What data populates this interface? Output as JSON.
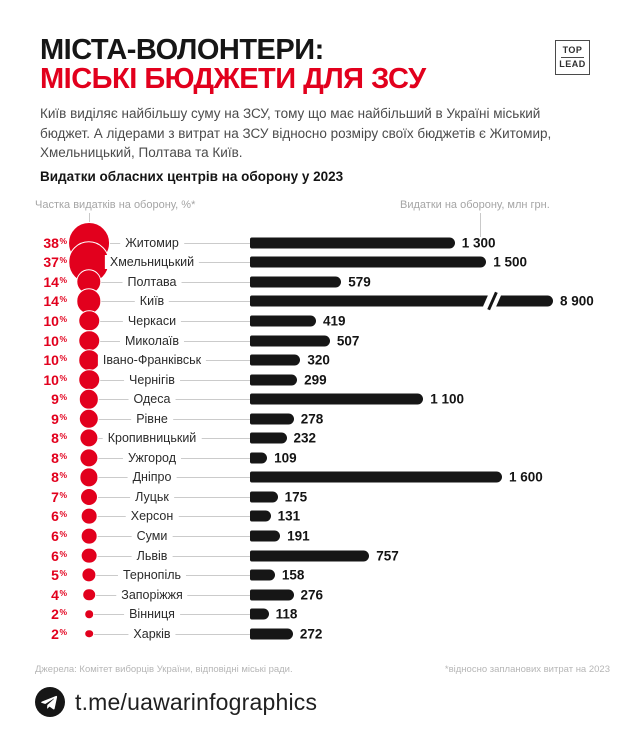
{
  "colors": {
    "accent_red": "#e2001d",
    "bar_black": "#161616",
    "connector_gray": "#cbcbcb",
    "muted_gray": "#a5a5a5"
  },
  "strings": {
    "percent_sign": "%"
  },
  "header": {
    "title_line1": "МІСТА-ВОЛОНТЕРИ:",
    "title_line2": "МІСЬКІ БЮДЖЕТИ ДЛЯ ЗСУ",
    "logo_top": "TOP",
    "logo_bottom": "LEAD",
    "intro": "Київ виділяє найбільшу суму на ЗСУ, тому що має найбільший в Україні міський бюджет. А лідерами з витрат на ЗСУ відносно розміру своїх бюджетів є Житомир, Хмельницький, Полтава та Київ."
  },
  "chart_data": {
    "type": "bar",
    "title": "Видатки обласних центрів на оборону у 2023",
    "axis_left_label": "Частка видатків на оборону, %*",
    "axis_right_label": "Видатки на оборону, млн грн.",
    "xlim": [
      0,
      1700
    ],
    "axis_break_value": 8900,
    "rows": [
      {
        "city": "Житомир",
        "share_pct": 38,
        "spend_mln": 1300,
        "spend_label": "1 300"
      },
      {
        "city": "Хмельницький",
        "share_pct": 37,
        "spend_mln": 1500,
        "spend_label": "1 500"
      },
      {
        "city": "Полтава",
        "share_pct": 14,
        "spend_mln": 579,
        "spend_label": "579"
      },
      {
        "city": "Київ",
        "share_pct": 14,
        "spend_mln": 8900,
        "spend_label": "8 900",
        "axis_break": true
      },
      {
        "city": "Черкаси",
        "share_pct": 10,
        "spend_mln": 419,
        "spend_label": "419"
      },
      {
        "city": "Миколаїв",
        "share_pct": 10,
        "spend_mln": 507,
        "spend_label": "507"
      },
      {
        "city": "Івано-Франківськ",
        "share_pct": 10,
        "spend_mln": 320,
        "spend_label": "320"
      },
      {
        "city": "Чернігів",
        "share_pct": 10,
        "spend_mln": 299,
        "spend_label": "299"
      },
      {
        "city": "Одеса",
        "share_pct": 9,
        "spend_mln": 1100,
        "spend_label": "1 100"
      },
      {
        "city": "Рівне",
        "share_pct": 9,
        "spend_mln": 278,
        "spend_label": "278"
      },
      {
        "city": "Кропивницький",
        "share_pct": 8,
        "spend_mln": 232,
        "spend_label": "232"
      },
      {
        "city": "Ужгород",
        "share_pct": 8,
        "spend_mln": 109,
        "spend_label": "109"
      },
      {
        "city": "Дніпро",
        "share_pct": 8,
        "spend_mln": 1600,
        "spend_label": "1 600"
      },
      {
        "city": "Луцьк",
        "share_pct": 7,
        "spend_mln": 175,
        "spend_label": "175"
      },
      {
        "city": "Херсон",
        "share_pct": 6,
        "spend_mln": 131,
        "spend_label": "131"
      },
      {
        "city": "Суми",
        "share_pct": 6,
        "spend_mln": 191,
        "spend_label": "191"
      },
      {
        "city": "Львів",
        "share_pct": 6,
        "spend_mln": 757,
        "spend_label": "757"
      },
      {
        "city": "Тернопіль",
        "share_pct": 5,
        "spend_mln": 158,
        "spend_label": "158"
      },
      {
        "city": "Запоріжжя",
        "share_pct": 4,
        "spend_mln": 276,
        "spend_label": "276"
      },
      {
        "city": "Вінниця",
        "share_pct": 2,
        "spend_mln": 118,
        "spend_label": "118"
      },
      {
        "city": "Харків",
        "share_pct": 2,
        "spend_mln": 272,
        "spend_label": "272"
      }
    ]
  },
  "footer": {
    "sources": "Джерела: Комітет виборців України, відповідні міські ради.",
    "footnote": "*відносно запланових витрат на 2023",
    "telegram_handle": "t.me/uawarinfographics"
  }
}
